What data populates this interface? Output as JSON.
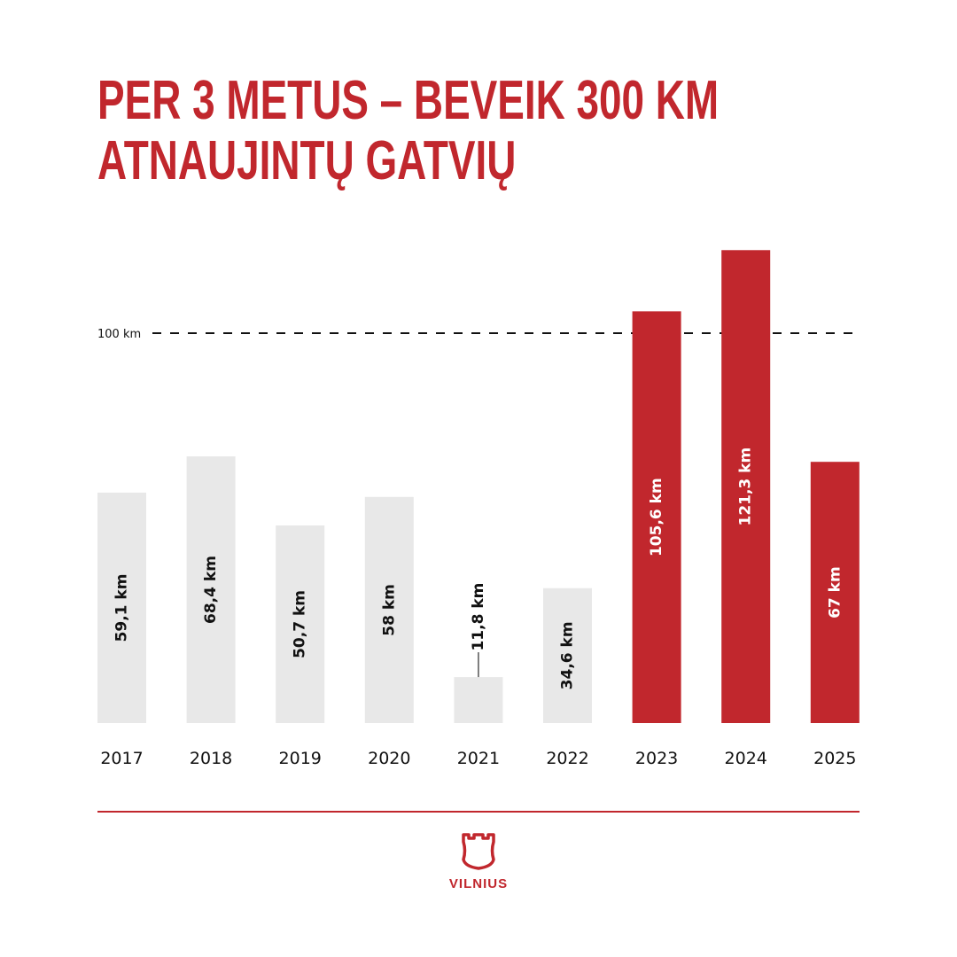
{
  "title": {
    "line1": "PER 3 METUS – BEVEIK 300 KM",
    "line2": "ATNAUJINTŲ GATVIŲ"
  },
  "logo": {
    "text": "VILNIUS"
  },
  "colors": {
    "accent": "#c1272d",
    "muted": "#e8e8e8"
  },
  "chart_data": {
    "type": "bar",
    "title": "PER 3 METUS – BEVEIK 300 KM ATNAUJINTŲ GATVIŲ",
    "xlabel": "",
    "ylabel": "",
    "categories": [
      "2017",
      "2018",
      "2019",
      "2020",
      "2021",
      "2022",
      "2023",
      "2024",
      "2025"
    ],
    "values": [
      59.1,
      68.4,
      50.7,
      58,
      11.8,
      34.6,
      105.6,
      121.3,
      67
    ],
    "labels": [
      "59,1 km",
      "68,4 km",
      "50,7 km",
      "58 km",
      "11,8 km",
      "34,6 km",
      "105,6 km",
      "121,3 km",
      "67 km"
    ],
    "highlighted": [
      false,
      false,
      false,
      false,
      false,
      false,
      true,
      true,
      true
    ],
    "reference_line": {
      "value": 100,
      "label": "100 km"
    },
    "ylim": [
      0,
      125
    ],
    "grid": false
  }
}
